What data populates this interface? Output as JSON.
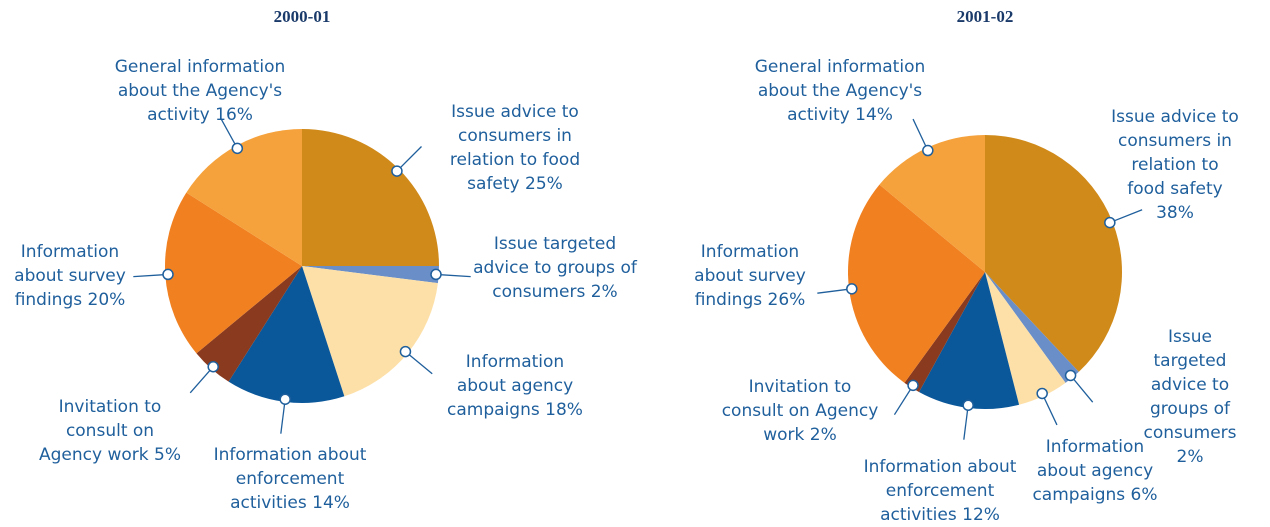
{
  "chart_data": [
    {
      "type": "pie",
      "title": "2000-01",
      "categories": [
        "Issue advice to consumers in relation to food safety",
        "Issue targeted advice to groups of consumers",
        "Information about agency campaigns",
        "Information about enforcement activities",
        "Invitation to consult on Agency work",
        "Information about survey findings",
        "General information about the Agency's activity"
      ],
      "values": [
        25,
        2,
        18,
        14,
        5,
        20,
        16
      ],
      "value_labels": [
        "25%",
        "2%",
        "18%",
        "14%",
        "5%",
        "20%",
        "16%"
      ],
      "colors": [
        "#d08a1a",
        "#6a8fc8",
        "#fde0a8",
        "#0a579a",
        "#8a3a1e",
        "#f08020",
        "#f5a23c"
      ]
    },
    {
      "type": "pie",
      "title": "2001-02",
      "categories": [
        "Issue advice to consumers in relation to food safety",
        "Issue targeted advice to groups of consumers",
        "Information about agency campaigns",
        "Information about enforcement activities",
        "Invitation to consult on Agency work",
        "Information about survey findings",
        "General information about the Agency's activity"
      ],
      "values": [
        38,
        2,
        6,
        12,
        2,
        26,
        14
      ],
      "value_labels": [
        "38%",
        "2%",
        "6%",
        "12%",
        "2%",
        "26%",
        "14%"
      ],
      "colors": [
        "#d08a1a",
        "#6a8fc8",
        "#fde0a8",
        "#0a579a",
        "#8a3a1e",
        "#f08020",
        "#f5a23c"
      ]
    }
  ]
}
